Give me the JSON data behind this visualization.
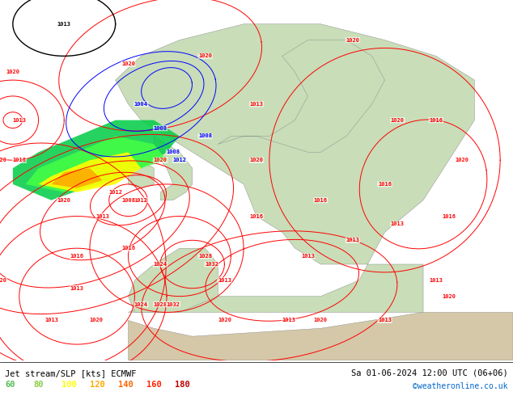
{
  "title_left": "Jet stream/SLP [kts] ECMWF",
  "title_right": "Sa 01-06-2024 12:00 UTC (06+06)",
  "credit": "©weatheronline.co.uk",
  "legend_values": [
    "60",
    "80",
    "100",
    "120",
    "140",
    "160",
    "180"
  ],
  "legend_colors": [
    "#55bb55",
    "#88cc44",
    "#ffff00",
    "#ffaa00",
    "#ff6600",
    "#ff2200",
    "#bb0000"
  ],
  "fig_width": 6.34,
  "fig_height": 4.9,
  "dpi": 100
}
